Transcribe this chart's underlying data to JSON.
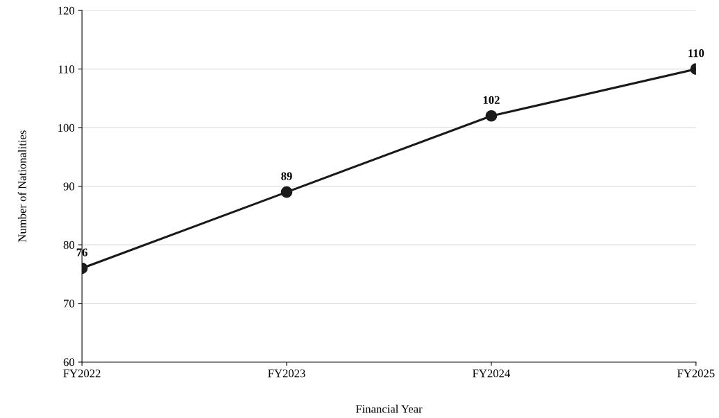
{
  "chart_data": {
    "type": "line",
    "xlabel": "Financial Year",
    "ylabel": "Number of Nationalities",
    "categories": [
      "FY2022",
      "FY2023",
      "FY2024",
      "FY2025"
    ],
    "series": [
      {
        "color": "#1a1a1a",
        "values": [
          76,
          89,
          102,
          110
        ]
      }
    ],
    "ylim": [
      60,
      120
    ],
    "yticks": [
      60,
      70,
      80,
      90,
      100,
      110,
      120
    ],
    "grid": "y",
    "marker": "circle",
    "line_style": "solid",
    "data_labels": true
  }
}
